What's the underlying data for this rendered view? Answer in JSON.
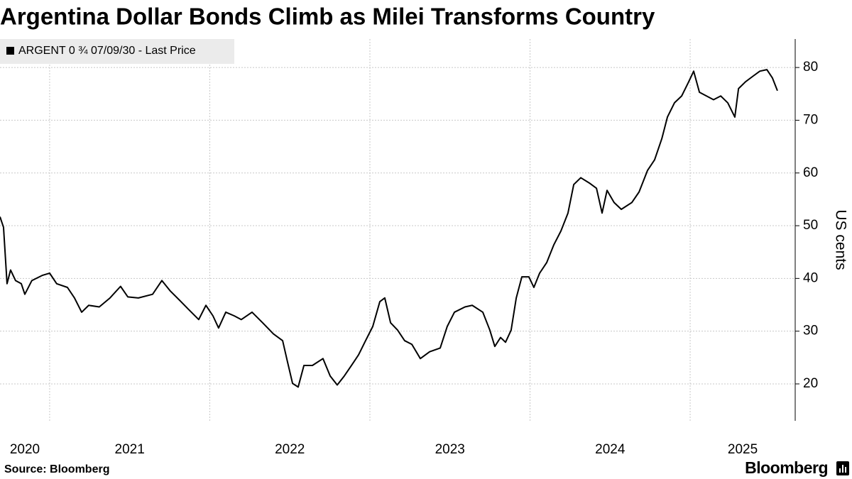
{
  "chart_data": {
    "type": "line",
    "title": "Argentina Dollar Bonds Climb as Milei Transforms Country",
    "y_axis_label": "US cents",
    "source": "Source: Bloomberg",
    "brand": "Bloomberg",
    "legend": "top-left",
    "grid": true,
    "xlim": [
      2020.69,
      2025.656
    ],
    "xticks": [
      2020,
      2021,
      2022,
      2023,
      2024,
      2025
    ],
    "ylim": [
      13,
      85.4
    ],
    "yticks": [
      20,
      30,
      40,
      50,
      60,
      70,
      80
    ],
    "series": [
      {
        "name": "ARGENT 0 ¾ 07/09/30 - Last Price",
        "color": "#000000",
        "x": [
          2020.69,
          2020.712,
          2020.734,
          2020.756,
          2020.787,
          2020.823,
          2020.845,
          2020.889,
          2020.956,
          2021.0,
          2021.044,
          2021.111,
          2021.155,
          2021.2,
          2021.244,
          2021.31,
          2021.377,
          2021.443,
          2021.488,
          2021.554,
          2021.643,
          2021.701,
          2021.754,
          2021.82,
          2021.865,
          2021.931,
          2021.976,
          2022.02,
          2022.055,
          2022.1,
          2022.153,
          2022.197,
          2022.264,
          2022.33,
          2022.397,
          2022.455,
          2022.486,
          2022.517,
          2022.552,
          2022.588,
          2022.641,
          2022.707,
          2022.752,
          2022.796,
          2022.84,
          2022.885,
          2022.929,
          2022.973,
          2023.018,
          2023.062,
          2023.093,
          2023.129,
          2023.173,
          2023.217,
          2023.262,
          2023.315,
          2023.373,
          2023.439,
          2023.483,
          2023.528,
          2023.594,
          2023.639,
          2023.705,
          2023.749,
          2023.78,
          2023.816,
          2023.847,
          2023.882,
          2023.914,
          2023.949,
          2023.993,
          2024.024,
          2024.06,
          2024.104,
          2024.149,
          2024.193,
          2024.237,
          2024.273,
          2024.317,
          2024.37,
          2024.415,
          2024.45,
          2024.481,
          2024.525,
          2024.57,
          2024.636,
          2024.681,
          2024.734,
          2024.778,
          2024.823,
          2024.858,
          2024.902,
          2024.947,
          2024.991,
          2025.022,
          2025.058,
          2025.102,
          2025.146,
          2025.191,
          2025.235,
          2025.279,
          2025.302,
          2025.346,
          2025.39,
          2025.435,
          2025.479,
          2025.514,
          2025.545
        ],
        "values": [
          51.7,
          49.7,
          39,
          41.6,
          39.6,
          39,
          37,
          39.6,
          40.6,
          41,
          39,
          38.3,
          36.3,
          33.6,
          34.9,
          34.6,
          36.3,
          38.5,
          36.5,
          36.3,
          37,
          39.6,
          37.6,
          35.6,
          34.2,
          32.2,
          34.9,
          32.9,
          30.6,
          33.6,
          32.9,
          32.2,
          33.6,
          31.6,
          29.5,
          28.2,
          24.1,
          20.1,
          19.4,
          23.5,
          23.5,
          24.8,
          21.5,
          19.8,
          21.5,
          23.5,
          25.5,
          28.2,
          30.9,
          35.6,
          36.3,
          31.6,
          30.2,
          28.2,
          27.5,
          24.8,
          26.1,
          26.8,
          30.9,
          33.6,
          34.6,
          34.9,
          33.6,
          30.2,
          27.1,
          28.8,
          27.9,
          30.2,
          36.3,
          40.3,
          40.3,
          38.3,
          41,
          43,
          46.4,
          49,
          52.4,
          57.8,
          59.1,
          58.1,
          57.1,
          52.4,
          56.7,
          54.4,
          53.1,
          54.4,
          56.4,
          60.5,
          62.5,
          66.5,
          70.6,
          73.3,
          74.6,
          77.3,
          79.3,
          75.3,
          74.6,
          73.9,
          74.6,
          73.3,
          70.6,
          76,
          77.3,
          78.3,
          79.3,
          79.6,
          78,
          75.6
        ]
      }
    ]
  }
}
